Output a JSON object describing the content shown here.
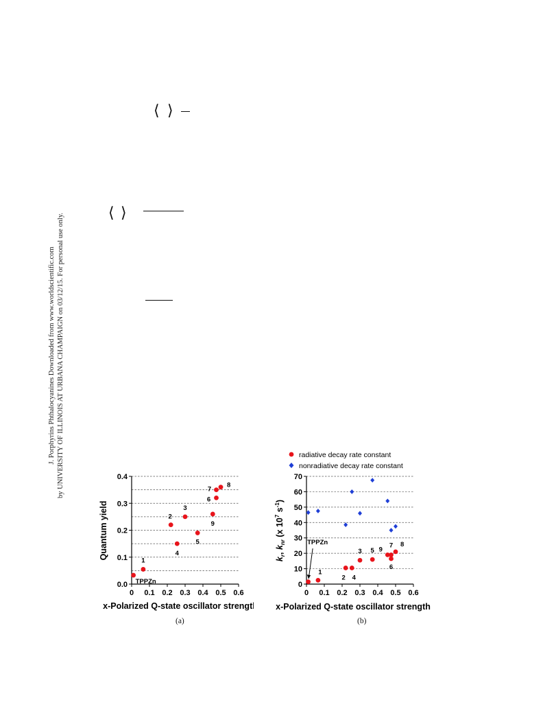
{
  "sidebar_note": {
    "line1": "J. Porphyrins Phthalocyanines Downloaded from www.worldscientific.com",
    "line2": "by UNIVERSITY OF ILLINOIS AT URBANA CHAMPAIGN on 03/12/15. For personal use only."
  },
  "equation_fragments": {
    "eq1_left": "⟨",
    "eq1_right": "⟩",
    "eq2_left": "⟨",
    "eq2_right": "⟩"
  },
  "captions": {
    "a": "(a)",
    "b": "(b)"
  },
  "colors": {
    "radiative": "#e8141b",
    "nonradiative": "#1f3fd6",
    "grid": "#555555"
  },
  "chart_data": [
    {
      "type": "scatter",
      "panel": "a",
      "xlabel": "x-Polarized Q-state oscillator strength",
      "ylabel": "Quantum yield",
      "xlim": [
        0,
        0.6
      ],
      "ylim": [
        0,
        0.4
      ],
      "xticks": [
        "0",
        "0.1",
        "0.2",
        "0.3",
        "0.4",
        "0.5",
        "0.6"
      ],
      "yticks": [
        "0.0",
        "0.1",
        "0.2",
        "0.3",
        "0.4"
      ],
      "grid": "horizontal dashed",
      "series": [
        {
          "points": [
            {
              "label": "TPPZn",
              "x": 0.01,
              "y": 0.033
            },
            {
              "label": "1",
              "x": 0.065,
              "y": 0.055
            },
            {
              "label": "2",
              "x": 0.22,
              "y": 0.22
            },
            {
              "label": "3",
              "x": 0.3,
              "y": 0.25
            },
            {
              "label": "4",
              "x": 0.255,
              "y": 0.15
            },
            {
              "label": "5",
              "x": 0.37,
              "y": 0.19
            },
            {
              "label": "6",
              "x": 0.475,
              "y": 0.32
            },
            {
              "label": "7",
              "x": 0.475,
              "y": 0.35
            },
            {
              "label": "8",
              "x": 0.5,
              "y": 0.36
            },
            {
              "label": "9",
              "x": 0.455,
              "y": 0.26
            }
          ]
        }
      ]
    },
    {
      "type": "scatter",
      "panel": "b",
      "xlabel": "x-Polarized Q-state oscillator strength",
      "ylabel": "k_r, k_nr (x 10^7 s^-1)",
      "xlim": [
        0,
        0.6
      ],
      "ylim": [
        0,
        70
      ],
      "xticks": [
        "0",
        "0.1",
        "0.2",
        "0.3",
        "0.4",
        "0.5",
        "0.6"
      ],
      "yticks": [
        "0",
        "10",
        "20",
        "30",
        "40",
        "50",
        "60",
        "70"
      ],
      "grid": "horizontal dashed",
      "legend": "top, above plot",
      "annotation": "TPPZn",
      "series": [
        {
          "name": "radiative decay rate constant",
          "marker": "circle",
          "points": [
            {
              "label": "",
              "x": 0.01,
              "y": 1.5
            },
            {
              "label": "1",
              "x": 0.065,
              "y": 2.5
            },
            {
              "label": "2",
              "x": 0.22,
              "y": 10.5
            },
            {
              "label": "4",
              "x": 0.255,
              "y": 10.5
            },
            {
              "label": "3",
              "x": 0.3,
              "y": 15.5
            },
            {
              "label": "5",
              "x": 0.37,
              "y": 16
            },
            {
              "label": "9",
              "x": 0.455,
              "y": 19
            },
            {
              "label": "7",
              "x": 0.475,
              "y": 19
            },
            {
              "label": "6",
              "x": 0.475,
              "y": 16.5
            },
            {
              "label": "8",
              "x": 0.5,
              "y": 21
            }
          ]
        },
        {
          "name": "nonradiative decay rate constant",
          "marker": "diamond",
          "points": [
            {
              "x": 0.01,
              "y": 46.5
            },
            {
              "x": 0.065,
              "y": 47.5
            },
            {
              "x": 0.22,
              "y": 38.5
            },
            {
              "x": 0.255,
              "y": 60
            },
            {
              "x": 0.3,
              "y": 46
            },
            {
              "x": 0.37,
              "y": 67.5
            },
            {
              "x": 0.455,
              "y": 54
            },
            {
              "x": 0.475,
              "y": 35
            },
            {
              "x": 0.5,
              "y": 37.5
            }
          ]
        }
      ]
    }
  ]
}
